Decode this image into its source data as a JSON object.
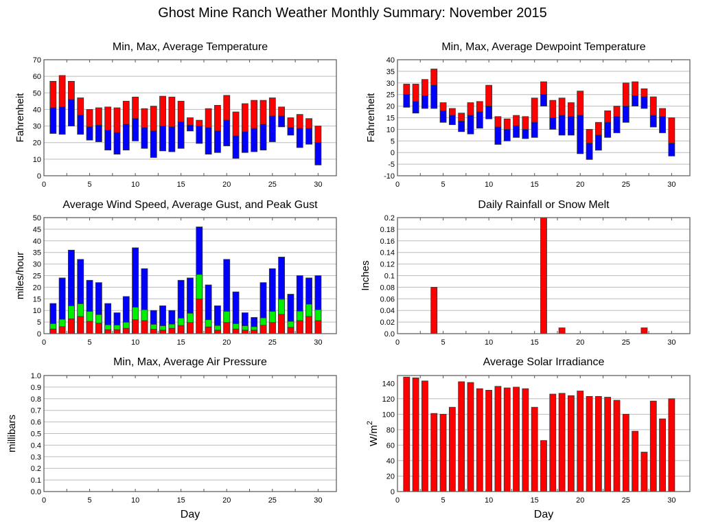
{
  "page": {
    "title": "Ghost Mine Ranch Weather Monthly Summary: November 2015"
  },
  "colors": {
    "red": "#ff0000",
    "blue": "#0000ff",
    "green": "#00ee00",
    "grid": "#bbbbbb",
    "axis": "#555555"
  },
  "chart_data": [
    {
      "id": "temperature",
      "type": "bar",
      "subtype": "floating-stacked",
      "title": "Min, Max, Average Temperature",
      "xlabel": "",
      "ylabel": "Fahrenheit",
      "xlim": [
        0,
        32
      ],
      "ylim": [
        0,
        70
      ],
      "xticks": [
        0,
        5,
        10,
        15,
        20,
        25,
        30
      ],
      "yticks": [
        0,
        10,
        20,
        30,
        40,
        50,
        60,
        70
      ],
      "ytick_labels": [
        "0",
        "10",
        "20",
        "30",
        "40",
        "50",
        "60",
        "70"
      ],
      "grid": true,
      "x": [
        1,
        2,
        3,
        4,
        5,
        6,
        7,
        8,
        9,
        10,
        11,
        12,
        13,
        14,
        15,
        16,
        17,
        18,
        19,
        20,
        21,
        22,
        23,
        24,
        25,
        26,
        27,
        28,
        29,
        30
      ],
      "series": [
        {
          "name": "Max",
          "color": "red",
          "values": [
            57,
            60.5,
            57,
            47,
            40,
            41,
            41.5,
            41,
            45,
            47.5,
            40.5,
            42,
            48,
            47.5,
            45,
            35,
            33.5,
            40.5,
            42.5,
            48.5,
            38.5,
            43.5,
            45.5,
            45.5,
            47,
            41.5,
            35,
            37,
            34.5,
            30
          ]
        },
        {
          "name": "Average",
          "color": "blue",
          "values": [
            41,
            41.5,
            46,
            36.5,
            29.5,
            30.5,
            27.5,
            26,
            31,
            34.5,
            29,
            27,
            30,
            29.5,
            32.5,
            30.5,
            30,
            29,
            27,
            33.5,
            24,
            26.5,
            28.5,
            31,
            36,
            36,
            29,
            28.5,
            28.5,
            20
          ]
        },
        {
          "name": "Min",
          "color": "none",
          "values": [
            25.5,
            25,
            30,
            25,
            21.5,
            20.5,
            15.5,
            13,
            15.5,
            21,
            16.5,
            11,
            15,
            14.5,
            16.5,
            27,
            19.5,
            13,
            14,
            18,
            10.5,
            14,
            14.5,
            15.5,
            20.5,
            29.5,
            24.5,
            17,
            19,
            6.5
          ]
        }
      ]
    },
    {
      "id": "dewpoint",
      "type": "bar",
      "subtype": "floating-stacked",
      "title": "Min, Max, Average Dewpoint Temperature",
      "xlabel": "",
      "ylabel": "Fahrenheit",
      "xlim": [
        0,
        32
      ],
      "ylim": [
        -10,
        40
      ],
      "xticks": [
        0,
        5,
        10,
        15,
        20,
        25,
        30
      ],
      "yticks": [
        -10,
        -5,
        0,
        5,
        10,
        15,
        20,
        25,
        30,
        35,
        40
      ],
      "ytick_labels": [
        "-10",
        "-5",
        "0",
        "5",
        "10",
        "15",
        "20",
        "25",
        "30",
        "35",
        "40"
      ],
      "grid": true,
      "x": [
        1,
        2,
        3,
        4,
        5,
        6,
        7,
        8,
        9,
        10,
        11,
        12,
        13,
        14,
        15,
        16,
        17,
        18,
        19,
        20,
        21,
        22,
        23,
        24,
        25,
        26,
        27,
        28,
        29,
        30
      ],
      "series": [
        {
          "name": "Max",
          "color": "red",
          "values": [
            29.5,
            29.5,
            31.5,
            36,
            21.5,
            19,
            17,
            21.5,
            22,
            29,
            15.5,
            14.5,
            16,
            15.5,
            23.5,
            30.5,
            22.5,
            23.5,
            21.5,
            26.5,
            10,
            13,
            18,
            20,
            30,
            30.5,
            27.5,
            24,
            19,
            15
          ]
        },
        {
          "name": "Average",
          "color": "blue",
          "values": [
            25,
            22,
            24.5,
            29,
            18,
            16,
            13.5,
            16,
            17.5,
            20,
            11,
            10,
            11.5,
            10,
            13,
            25,
            15,
            16,
            15.5,
            16,
            4,
            7.5,
            13,
            15.5,
            20,
            24.5,
            24,
            16,
            15.5,
            4
          ]
        },
        {
          "name": "Min",
          "color": "none",
          "values": [
            19.5,
            17,
            19,
            19,
            13,
            12,
            9,
            8,
            10.5,
            14.5,
            3.5,
            5,
            6.5,
            6,
            6.5,
            20,
            10,
            7.5,
            7.5,
            -0.5,
            -3,
            1,
            6.5,
            8.5,
            13,
            20,
            19,
            11,
            8.5,
            -1.5
          ]
        }
      ]
    },
    {
      "id": "wind",
      "type": "bar",
      "subtype": "overlaid",
      "title": "Average Wind Speed, Average Gust, and Peak Gust",
      "xlabel": "",
      "ylabel": "miles/hour",
      "xlim": [
        0,
        32
      ],
      "ylim": [
        0,
        50
      ],
      "xticks": [
        0,
        5,
        10,
        15,
        20,
        25,
        30
      ],
      "yticks": [
        0,
        5,
        10,
        15,
        20,
        25,
        30,
        35,
        40,
        45,
        50
      ],
      "ytick_labels": [
        "0",
        "5",
        "10",
        "15",
        "20",
        "25",
        "30",
        "35",
        "40",
        "45",
        "50"
      ],
      "grid": true,
      "x": [
        1,
        2,
        3,
        4,
        5,
        6,
        7,
        8,
        9,
        10,
        11,
        12,
        13,
        14,
        15,
        16,
        17,
        18,
        19,
        20,
        21,
        22,
        23,
        24,
        25,
        26,
        27,
        28,
        29,
        30
      ],
      "series": [
        {
          "name": "Peak Gust",
          "color": "blue",
          "values": [
            13,
            24,
            36,
            32,
            23,
            22,
            13,
            9,
            16,
            37,
            28,
            10,
            12,
            10,
            23,
            24,
            46,
            21,
            12,
            32,
            18,
            9,
            7,
            22,
            28,
            33,
            17,
            25,
            24,
            25
          ]
        },
        {
          "name": "Average Gust",
          "color": "green",
          "values": [
            4.3,
            6.2,
            12,
            12.9,
            9.6,
            8.2,
            3.8,
            3.7,
            4.9,
            11.4,
            10.3,
            4,
            3.4,
            4.1,
            6.7,
            8.8,
            25.5,
            6,
            3.5,
            9.6,
            4.3,
            3.4,
            3,
            6.8,
            9.6,
            14.8,
            5.3,
            9.7,
            12.7,
            10.3
          ]
        },
        {
          "name": "Average Wind Speed",
          "color": "red",
          "values": [
            2,
            3,
            6.4,
            7.4,
            5.3,
            4.5,
            1.7,
            1.7,
            2.3,
            6,
            5.6,
            1.9,
            1.5,
            2.3,
            3.5,
            4.8,
            15,
            2.9,
            1.5,
            4.8,
            2,
            1.5,
            1.5,
            3.6,
            4.8,
            8.3,
            2.7,
            5.6,
            7.4,
            5.6
          ]
        }
      ]
    },
    {
      "id": "rainfall",
      "type": "bar",
      "title": "Daily Rainfall or Snow Melt",
      "xlabel": "",
      "ylabel": "Inches",
      "xlim": [
        0,
        32
      ],
      "ylim": [
        0,
        0.2
      ],
      "xticks": [
        0,
        5,
        10,
        15,
        20,
        25,
        30
      ],
      "yticks": [
        0,
        0.02,
        0.04,
        0.06,
        0.08,
        0.1,
        0.12,
        0.14,
        0.16,
        0.18,
        0.2
      ],
      "ytick_labels": [
        "0.0",
        "0.02",
        "0.04",
        "0.06",
        "0.08",
        "0.1",
        "0.12",
        "0.14",
        "0.16",
        "0.18",
        "0.2"
      ],
      "grid": true,
      "x": [
        4,
        16,
        18,
        27
      ],
      "series": [
        {
          "name": "Rainfall",
          "color": "red",
          "values": [
            0.08,
            0.2,
            0.01,
            0.01
          ]
        }
      ]
    },
    {
      "id": "pressure",
      "type": "bar",
      "title": "Min, Max, Average Air Pressure",
      "xlabel": "Day",
      "ylabel": "millibars",
      "xlim": [
        0,
        32
      ],
      "ylim": [
        0,
        1
      ],
      "xticks": [
        0,
        5,
        10,
        15,
        20,
        25,
        30
      ],
      "yticks": [
        0,
        0.1,
        0.2,
        0.3,
        0.4,
        0.5,
        0.6,
        0.7,
        0.8,
        0.9,
        1.0
      ],
      "ytick_labels": [
        "0.0",
        "0.1",
        "0.2",
        "0.3",
        "0.4",
        "0.5",
        "0.6",
        "0.7",
        "0.8",
        "0.9",
        "1.0"
      ],
      "grid": true,
      "x": [],
      "series": []
    },
    {
      "id": "solar",
      "type": "bar",
      "title": "Average Solar Irradiance",
      "xlabel": "Day",
      "ylabel": "W/m",
      "ylabel_sup": "2",
      "xlim": [
        0,
        32
      ],
      "ylim": [
        0,
        150
      ],
      "xticks": [
        0,
        5,
        10,
        15,
        20,
        25,
        30
      ],
      "yticks": [
        0,
        20,
        40,
        60,
        80,
        100,
        120,
        140
      ],
      "ytick_labels": [
        "0",
        "20",
        "40",
        "60",
        "80",
        "100",
        "120",
        "140"
      ],
      "grid": true,
      "x": [
        1,
        2,
        3,
        4,
        5,
        6,
        7,
        8,
        9,
        10,
        11,
        12,
        13,
        14,
        15,
        16,
        17,
        18,
        19,
        20,
        21,
        22,
        23,
        24,
        25,
        26,
        27,
        28,
        29,
        30
      ],
      "series": [
        {
          "name": "Solar",
          "color": "red",
          "values": [
            148,
            147,
            143,
            101,
            100,
            109,
            142,
            141,
            133,
            131,
            136,
            134,
            135,
            133,
            109,
            66,
            126,
            127,
            124,
            130,
            123,
            123,
            122,
            118,
            100,
            78,
            51,
            117,
            94,
            120
          ]
        }
      ]
    }
  ]
}
